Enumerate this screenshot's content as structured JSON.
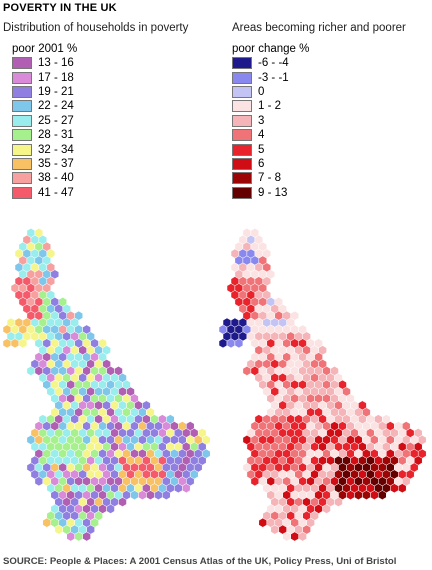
{
  "title": "POVERTY IN THE UK",
  "left_panel": {
    "subtitle": "Distribution of households in poverty",
    "legend_title": "poor 2001 %",
    "legend": [
      {
        "label": "13 - 16",
        "color": "#b05fb3"
      },
      {
        "label": "17 - 18",
        "color": "#d98ad8"
      },
      {
        "label": "19 - 21",
        "color": "#8f7fe0"
      },
      {
        "label": "22 - 24",
        "color": "#7ec6ea"
      },
      {
        "label": "25 - 27",
        "color": "#99eded"
      },
      {
        "label": "28 - 31",
        "color": "#a6f08e"
      },
      {
        "label": "32 - 34",
        "color": "#f5f58a"
      },
      {
        "label": "35 - 37",
        "color": "#f7c164"
      },
      {
        "label": "38 - 40",
        "color": "#f7a0a0"
      },
      {
        "label": "41 - 47",
        "color": "#f55a6a"
      }
    ]
  },
  "right_panel": {
    "subtitle": "Areas becoming richer and poorer",
    "legend_title": "poor change %",
    "legend": [
      {
        "label": "-6 - -4",
        "color": "#1f1a8c"
      },
      {
        "label": "-3 - -1",
        "color": "#8888ee"
      },
      {
        "label": "0",
        "color": "#c4c4f4"
      },
      {
        "label": "1 - 2",
        "color": "#fbe3e3"
      },
      {
        "label": "3",
        "color": "#f5b5b8"
      },
      {
        "label": "4",
        "color": "#f07378"
      },
      {
        "label": "5",
        "color": "#e8232c"
      },
      {
        "label": "6",
        "color": "#d00d15"
      },
      {
        "label": "7 - 8",
        "color": "#9c0505"
      },
      {
        "label": "9 - 13",
        "color": "#640000"
      }
    ]
  },
  "source": "SOURCE: People & Places: A 2001 Census Atlas of the UK, Policy Press, Uni of Bristol"
}
